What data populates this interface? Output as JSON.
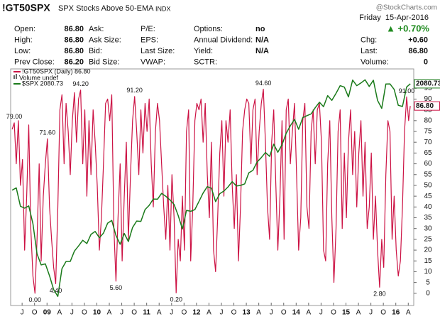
{
  "header": {
    "symbol": "!GT50SPX",
    "description": "SPX Stocks Above 50-EMA",
    "exchange": "INDX",
    "watermark": "@StockCharts.com",
    "date": "Friday  15-Apr-2016",
    "change_pct": "▲ +0.70%",
    "columns": [
      [
        {
          "label": "Open:",
          "value": "86.80"
        },
        {
          "label": "High:",
          "value": "86.80"
        },
        {
          "label": "Low:",
          "value": "86.80"
        },
        {
          "label": "Prev Close:",
          "value": "86.20"
        }
      ],
      [
        {
          "label": "Ask:"
        },
        {
          "label": "Ask Size:"
        },
        {
          "label": "Bid:"
        },
        {
          "label": "Bid Size:"
        }
      ],
      [
        {
          "label": "P/E:"
        },
        {
          "label": "EPS:"
        },
        {
          "label": "Last Size:"
        },
        {
          "label": "VWAP:"
        }
      ],
      [
        {
          "label": "Options:",
          "value": "no"
        },
        {
          "label": "Annual Dividend:",
          "value": "N/A"
        },
        {
          "label": "Yield:",
          "value": "N/A"
        },
        {
          "label": "SCTR:"
        }
      ],
      [
        {
          "label": "Chg:",
          "value": "+0.60"
        },
        {
          "label": "Last:",
          "value": "86.80"
        },
        {
          "label": "Volume:",
          "value": "0"
        }
      ]
    ]
  },
  "chart_data": {
    "type": "line",
    "grid": false,
    "volume_legend": "Volume undef",
    "xlim": [
      2008.27,
      2016.36
    ],
    "ylim": [
      -5,
      102
    ],
    "y2lim": [
      640,
      2150
    ],
    "yticks": [
      0,
      5,
      10,
      15,
      20,
      25,
      30,
      35,
      40,
      45,
      50,
      55,
      60,
      65,
      70,
      75,
      80,
      85,
      90,
      95
    ],
    "xticks": [
      {
        "value": 2008.5,
        "label": "J"
      },
      {
        "value": 2008.75,
        "label": "O"
      },
      {
        "value": 2009,
        "label": "09"
      },
      {
        "value": 2009.25,
        "label": "A"
      },
      {
        "value": 2009.5,
        "label": "J"
      },
      {
        "value": 2009.75,
        "label": "O"
      },
      {
        "value": 2010,
        "label": "10"
      },
      {
        "value": 2010.25,
        "label": "A"
      },
      {
        "value": 2010.5,
        "label": "J"
      },
      {
        "value": 2010.75,
        "label": "O"
      },
      {
        "value": 2011,
        "label": "11"
      },
      {
        "value": 2011.25,
        "label": "A"
      },
      {
        "value": 2011.5,
        "label": "J"
      },
      {
        "value": 2011.75,
        "label": "O"
      },
      {
        "value": 2012,
        "label": "12"
      },
      {
        "value": 2012.25,
        "label": "A"
      },
      {
        "value": 2012.5,
        "label": "J"
      },
      {
        "value": 2012.75,
        "label": "O"
      },
      {
        "value": 2013,
        "label": "13"
      },
      {
        "value": 2013.25,
        "label": "A"
      },
      {
        "value": 2013.5,
        "label": "J"
      },
      {
        "value": 2013.75,
        "label": "O"
      },
      {
        "value": 2014,
        "label": "14"
      },
      {
        "value": 2014.25,
        "label": "A"
      },
      {
        "value": 2014.5,
        "label": "J"
      },
      {
        "value": 2014.75,
        "label": "O"
      },
      {
        "value": 2015,
        "label": "15"
      },
      {
        "value": 2015.25,
        "label": "A"
      },
      {
        "value": 2015.5,
        "label": "J"
      },
      {
        "value": 2015.75,
        "label": "O"
      },
      {
        "value": 2016,
        "label": "16"
      },
      {
        "value": 2016.25,
        "label": "A"
      }
    ],
    "series": [
      {
        "name": "!GT50SPX (Daily) 86.80",
        "color": "#cc1244",
        "last_label": "86.80",
        "x": [
          2008.3,
          2008.342,
          2008.383,
          2008.425,
          2008.467,
          2008.508,
          2008.55,
          2008.592,
          2008.633,
          2008.675,
          2008.717,
          2008.758,
          2008.8,
          2008.842,
          2008.883,
          2008.925,
          2008.967,
          2009.008,
          2009.05,
          2009.092,
          2009.133,
          2009.175,
          2009.217,
          2009.258,
          2009.3,
          2009.342,
          2009.383,
          2009.425,
          2009.467,
          2009.508,
          2009.55,
          2009.592,
          2009.633,
          2009.675,
          2009.717,
          2009.758,
          2009.8,
          2009.842,
          2009.883,
          2009.925,
          2009.967,
          2010.008,
          2010.05,
          2010.092,
          2010.133,
          2010.175,
          2010.217,
          2010.258,
          2010.3,
          2010.342,
          2010.383,
          2010.425,
          2010.467,
          2010.508,
          2010.55,
          2010.592,
          2010.633,
          2010.675,
          2010.717,
          2010.758,
          2010.8,
          2010.842,
          2010.883,
          2010.925,
          2010.967,
          2011.008,
          2011.05,
          2011.092,
          2011.133,
          2011.175,
          2011.217,
          2011.258,
          2011.3,
          2011.342,
          2011.383,
          2011.425,
          2011.467,
          2011.508,
          2011.55,
          2011.592,
          2011.633,
          2011.675,
          2011.717,
          2011.758,
          2011.8,
          2011.842,
          2011.883,
          2011.925,
          2011.967,
          2012.008,
          2012.05,
          2012.092,
          2012.133,
          2012.175,
          2012.217,
          2012.258,
          2012.3,
          2012.342,
          2012.383,
          2012.425,
          2012.467,
          2012.508,
          2012.55,
          2012.592,
          2012.633,
          2012.675,
          2012.717,
          2012.758,
          2012.8,
          2012.842,
          2012.883,
          2012.925,
          2012.967,
          2013.008,
          2013.05,
          2013.092,
          2013.133,
          2013.175,
          2013.217,
          2013.258,
          2013.3,
          2013.342,
          2013.383,
          2013.425,
          2013.467,
          2013.508,
          2013.55,
          2013.592,
          2013.633,
          2013.675,
          2013.717,
          2013.758,
          2013.8,
          2013.842,
          2013.883,
          2013.925,
          2013.967,
          2014.008,
          2014.05,
          2014.092,
          2014.133,
          2014.175,
          2014.217,
          2014.258,
          2014.3,
          2014.342,
          2014.383,
          2014.425,
          2014.467,
          2014.508,
          2014.55,
          2014.592,
          2014.633,
          2014.675,
          2014.717,
          2014.758,
          2014.8,
          2014.842,
          2014.883,
          2014.925,
          2014.967,
          2015.008,
          2015.05,
          2015.092,
          2015.133,
          2015.175,
          2015.217,
          2015.258,
          2015.3,
          2015.342,
          2015.383,
          2015.425,
          2015.467,
          2015.508,
          2015.55,
          2015.592,
          2015.633,
          2015.675,
          2015.717,
          2015.758,
          2015.8,
          2015.842,
          2015.883,
          2015.925,
          2015.967,
          2016.008,
          2016.05,
          2016.092,
          2016.133,
          2016.175,
          2016.217,
          2016.258,
          2016.29
        ],
        "values": [
          76,
          79,
          60,
          80,
          50,
          62,
          20,
          45,
          78,
          30,
          8,
          0,
          25,
          60,
          15,
          45,
          60,
          71.6,
          40,
          25,
          12,
          4.4,
          40,
          85,
          92,
          60,
          88,
          75,
          55,
          80,
          93,
          70,
          90,
          94.2,
          60,
          85,
          45,
          80,
          55,
          85,
          70,
          50,
          20,
          35,
          60,
          88,
          90,
          80,
          92,
          30,
          5.6,
          35,
          60,
          15,
          45,
          70,
          25,
          55,
          80,
          91.2,
          75,
          55,
          85,
          65,
          88,
          75,
          90,
          60,
          40,
          75,
          88,
          80,
          60,
          40,
          25,
          50,
          20,
          55,
          35,
          0.2,
          25,
          15,
          45,
          20,
          75,
          85,
          15,
          40,
          80,
          88,
          85,
          90,
          70,
          88,
          55,
          35,
          70,
          20,
          10,
          35,
          65,
          80,
          45,
          80,
          70,
          85,
          50,
          30,
          55,
          15,
          40,
          75,
          85,
          90,
          88,
          60,
          85,
          90,
          55,
          75,
          88,
          94.6,
          70,
          40,
          25,
          70,
          85,
          50,
          20,
          45,
          80,
          25,
          85,
          90,
          60,
          75,
          88,
          55,
          20,
          35,
          80,
          88,
          40,
          30,
          75,
          85,
          60,
          85,
          88,
          70,
          20,
          15,
          60,
          80,
          35,
          5,
          30,
          75,
          85,
          30,
          65,
          35,
          70,
          85,
          55,
          75,
          40,
          65,
          80,
          45,
          70,
          30,
          40,
          65,
          25,
          45,
          20,
          2.8,
          25,
          12,
          55,
          80,
          75,
          25,
          45,
          20,
          8,
          15,
          40,
          75,
          91,
          80,
          86.8
        ]
      },
      {
        "name": "$SPX 2080.73",
        "color": "#1a7a1a",
        "axis": "y2",
        "last_label": "2080.73",
        "x": [
          2008.3,
          2008.383,
          2008.467,
          2008.55,
          2008.633,
          2008.717,
          2008.8,
          2008.883,
          2008.967,
          2009.05,
          2009.133,
          2009.217,
          2009.3,
          2009.383,
          2009.467,
          2009.55,
          2009.633,
          2009.717,
          2009.8,
          2009.883,
          2009.967,
          2010.05,
          2010.133,
          2010.217,
          2010.3,
          2010.383,
          2010.467,
          2010.55,
          2010.633,
          2010.717,
          2010.8,
          2010.883,
          2010.967,
          2011.05,
          2011.133,
          2011.217,
          2011.3,
          2011.383,
          2011.467,
          2011.55,
          2011.633,
          2011.717,
          2011.8,
          2011.883,
          2011.967,
          2012.05,
          2012.133,
          2012.217,
          2012.3,
          2012.383,
          2012.467,
          2012.55,
          2012.633,
          2012.717,
          2012.8,
          2012.883,
          2012.967,
          2013.05,
          2013.133,
          2013.217,
          2013.3,
          2013.383,
          2013.467,
          2013.55,
          2013.633,
          2013.717,
          2013.8,
          2013.883,
          2013.967,
          2014.05,
          2014.133,
          2014.217,
          2014.3,
          2014.383,
          2014.467,
          2014.55,
          2014.633,
          2014.717,
          2014.8,
          2014.883,
          2014.967,
          2015.05,
          2015.133,
          2015.217,
          2015.3,
          2015.383,
          2015.467,
          2015.55,
          2015.633,
          2015.717,
          2015.8,
          2015.883,
          2015.967,
          2016.05,
          2016.133,
          2016.217,
          2016.292
        ],
        "values": [
          1385,
          1400,
          1280,
          1267,
          1282,
          1166,
          968,
          896,
          903,
          825,
          735,
          690,
          872,
          919,
          919,
          987,
          1020,
          1057,
          1036,
          1096,
          1115,
          1074,
          1104,
          1169,
          1187,
          1089,
          1031,
          1102,
          1049,
          1141,
          1183,
          1181,
          1258,
          1286,
          1327,
          1326,
          1364,
          1345,
          1321,
          1292,
          1219,
          1131,
          1253,
          1247,
          1258,
          1312,
          1366,
          1408,
          1398,
          1310,
          1362,
          1379,
          1406,
          1441,
          1412,
          1416,
          1426,
          1498,
          1515,
          1569,
          1598,
          1631,
          1606,
          1686,
          1633,
          1682,
          1757,
          1806,
          1848,
          1783,
          1859,
          1872,
          1884,
          1924,
          1960,
          1931,
          2003,
          1972,
          2018,
          2068,
          2059,
          1995,
          2105,
          2068,
          2086,
          2107,
          2063,
          2104,
          1972,
          1920,
          2079,
          2080,
          2044,
          1940,
          1932,
          2060,
          2080.73
        ]
      }
    ],
    "annotations": [
      {
        "x": 2008.342,
        "value": 79,
        "label": "79.00"
      },
      {
        "x": 2008.758,
        "value": 0,
        "label": "0.00"
      },
      {
        "x": 2009.008,
        "value": 71.6,
        "label": "71.60"
      },
      {
        "x": 2009.175,
        "value": 4.4,
        "label": "4.40"
      },
      {
        "x": 2009.675,
        "value": 94.2,
        "label": "94.20"
      },
      {
        "x": 2010.758,
        "value": 91.2,
        "label": "91.20"
      },
      {
        "x": 2010.383,
        "value": 5.6,
        "label": "5.60"
      },
      {
        "x": 2011.592,
        "value": 0.2,
        "label": "0.20"
      },
      {
        "x": 2013.342,
        "value": 94.6,
        "label": "94.60"
      },
      {
        "x": 2015.675,
        "value": 2.8,
        "label": "2.80"
      },
      {
        "x": 2016.217,
        "value": 91,
        "label": "91.00"
      }
    ]
  }
}
